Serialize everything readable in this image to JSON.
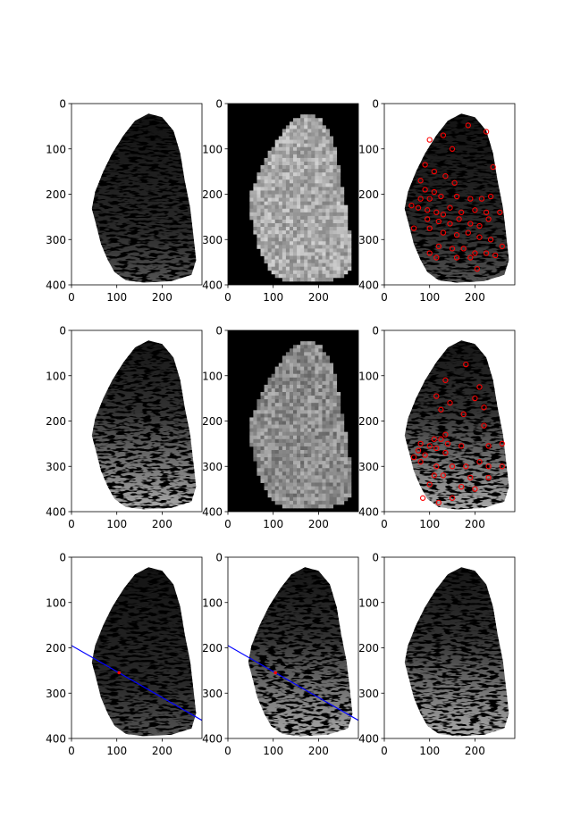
{
  "chart_data": {
    "type": "image-grid",
    "rows": 3,
    "cols": 3,
    "xlim": [
      0,
      288
    ],
    "ylim": [
      400,
      0
    ],
    "xticks": [
      0,
      100,
      200
    ],
    "yticks": [
      0,
      100,
      200,
      300,
      400
    ],
    "xtick_labels": [
      "0",
      "100",
      "200"
    ],
    "ytick_labels": [
      "0",
      "100",
      "200",
      "300",
      "400"
    ],
    "colors": {
      "minutiae": "#ff0000",
      "line": "#0000ff",
      "axes": "#000000"
    },
    "panels": [
      {
        "kind": "fingerprint",
        "variant": "dark",
        "xticks_shown": true,
        "yticks_shown": true
      },
      {
        "kind": "blockmap",
        "seed": 7,
        "xticks_shown": true,
        "yticks_shown": true
      },
      {
        "kind": "minutiae",
        "variant": "dark",
        "points": [
          [
            130,
            70
          ],
          [
            185,
            48
          ],
          [
            225,
            62
          ],
          [
            100,
            80
          ],
          [
            150,
            100
          ],
          [
            90,
            135
          ],
          [
            110,
            150
          ],
          [
            135,
            160
          ],
          [
            155,
            175
          ],
          [
            240,
            140
          ],
          [
            80,
            170
          ],
          [
            90,
            190
          ],
          [
            110,
            195
          ],
          [
            125,
            205
          ],
          [
            100,
            210
          ],
          [
            160,
            205
          ],
          [
            190,
            210
          ],
          [
            215,
            210
          ],
          [
            235,
            205
          ],
          [
            80,
            210
          ],
          [
            60,
            225
          ],
          [
            75,
            230
          ],
          [
            95,
            235
          ],
          [
            115,
            240
          ],
          [
            130,
            245
          ],
          [
            145,
            230
          ],
          [
            170,
            240
          ],
          [
            200,
            235
          ],
          [
            225,
            240
          ],
          [
            255,
            240
          ],
          [
            95,
            255
          ],
          [
            120,
            260
          ],
          [
            145,
            265
          ],
          [
            165,
            255
          ],
          [
            190,
            265
          ],
          [
            210,
            270
          ],
          [
            230,
            255
          ],
          [
            65,
            275
          ],
          [
            100,
            275
          ],
          [
            130,
            285
          ],
          [
            160,
            290
          ],
          [
            185,
            285
          ],
          [
            210,
            295
          ],
          [
            235,
            300
          ],
          [
            260,
            315
          ],
          [
            120,
            315
          ],
          [
            150,
            320
          ],
          [
            175,
            320
          ],
          [
            200,
            330
          ],
          [
            225,
            330
          ],
          [
            100,
            330
          ],
          [
            160,
            340
          ],
          [
            190,
            340
          ],
          [
            245,
            335
          ],
          [
            115,
            340
          ],
          [
            205,
            365
          ]
        ]
      },
      {
        "kind": "fingerprint",
        "variant": "light",
        "xticks_shown": true,
        "yticks_shown": true
      },
      {
        "kind": "blockmap",
        "seed": 13,
        "xticks_shown": true,
        "yticks_shown": true
      },
      {
        "kind": "minutiae",
        "variant": "light",
        "points": [
          [
            180,
            75
          ],
          [
            135,
            110
          ],
          [
            210,
            125
          ],
          [
            115,
            145
          ],
          [
            200,
            150
          ],
          [
            145,
            160
          ],
          [
            220,
            170
          ],
          [
            125,
            175
          ],
          [
            175,
            185
          ],
          [
            220,
            210
          ],
          [
            135,
            230
          ],
          [
            110,
            240
          ],
          [
            125,
            240
          ],
          [
            80,
            250
          ],
          [
            140,
            250
          ],
          [
            170,
            255
          ],
          [
            230,
            255
          ],
          [
            260,
            250
          ],
          [
            100,
            255
          ],
          [
            115,
            260
          ],
          [
            135,
            270
          ],
          [
            75,
            265
          ],
          [
            90,
            275
          ],
          [
            65,
            280
          ],
          [
            80,
            290
          ],
          [
            210,
            290
          ],
          [
            115,
            300
          ],
          [
            150,
            300
          ],
          [
            180,
            300
          ],
          [
            230,
            300
          ],
          [
            260,
            300
          ],
          [
            110,
            320
          ],
          [
            130,
            320
          ],
          [
            190,
            325
          ],
          [
            230,
            325
          ],
          [
            100,
            340
          ],
          [
            170,
            345
          ],
          [
            200,
            350
          ],
          [
            85,
            370
          ],
          [
            150,
            370
          ],
          [
            120,
            380
          ]
        ]
      },
      {
        "kind": "fingerprint",
        "variant": "dark",
        "line": [
          [
            0,
            195
          ],
          [
            288,
            360
          ]
        ],
        "mark": [
          105,
          255
        ],
        "xticks_shown": true,
        "yticks_shown": true
      },
      {
        "kind": "fingerprint",
        "variant": "light",
        "line": [
          [
            0,
            195
          ],
          [
            288,
            360
          ]
        ],
        "mark": [
          105,
          255
        ],
        "xticks_shown": true,
        "yticks_shown": true
      },
      {
        "kind": "fingerprint",
        "variant": "mixed",
        "xticks_shown": true,
        "yticks_shown": true
      }
    ]
  }
}
